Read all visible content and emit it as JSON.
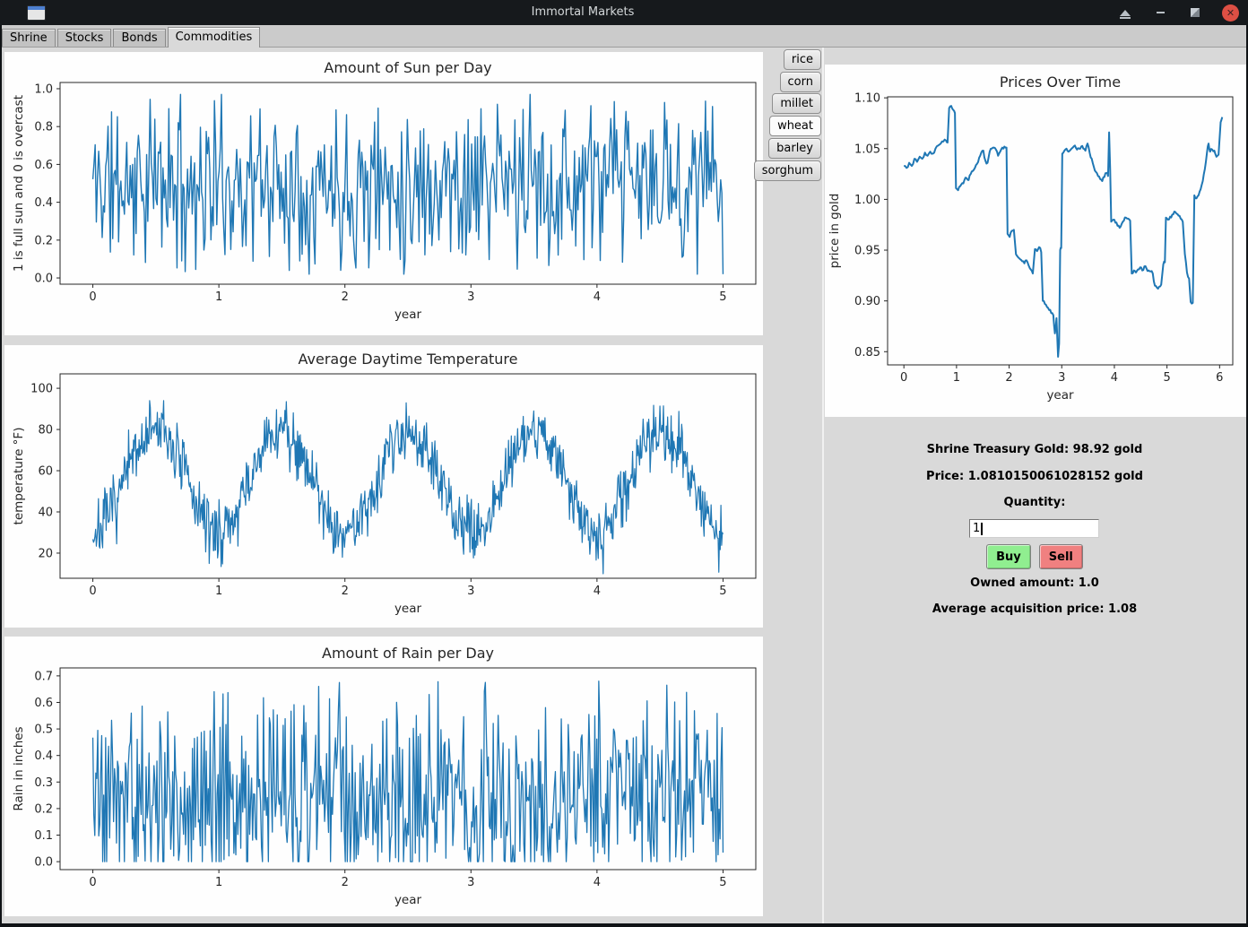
{
  "window": {
    "title": "Immortal Markets"
  },
  "titlebar": {
    "controls": [
      "shade",
      "minimize",
      "maximize",
      "close"
    ]
  },
  "tabs": [
    {
      "label": "Shrine",
      "active": false
    },
    {
      "label": "Stocks",
      "active": false
    },
    {
      "label": "Bonds",
      "active": false
    },
    {
      "label": "Commodities",
      "active": true
    }
  ],
  "commodities": [
    {
      "label": "rice",
      "active": false
    },
    {
      "label": "corn",
      "active": false
    },
    {
      "label": "millet",
      "active": false
    },
    {
      "label": "wheat",
      "active": true
    },
    {
      "label": "barley",
      "active": false
    },
    {
      "label": "sorghum",
      "active": false
    }
  ],
  "trade": {
    "treasury": "Shrine Treasury Gold: 98.92 gold",
    "price": "Price: 1.0810150061028152 gold",
    "quantity_label": "Quantity:",
    "quantity_value": "1",
    "buy": "Buy",
    "sell": "Sell",
    "owned": "Owned amount: 1.0",
    "avg": "Average acquisition price: 1.08",
    "buy_color": "#90ee90",
    "sell_color": "#f08080"
  },
  "colors": {
    "line": "#1f77b4",
    "titlebar": "#16191c",
    "content_bg": "#d9d9d9",
    "figure_bg": "#fefefe",
    "close_button": "#dd4f44"
  },
  "chart_data": [
    {
      "id": "sun",
      "type": "line",
      "title": "Amount of Sun per Day",
      "xlabel": "year",
      "ylabel": "1 is full sun and 0 is overcast",
      "xlim": [
        -0.26,
        5.26
      ],
      "ylim": [
        -0.033,
        1.033
      ],
      "xticks": [
        0,
        1,
        2,
        3,
        4,
        5
      ],
      "yticks": [
        0.0,
        0.2,
        0.4,
        0.6,
        0.8,
        1.0
      ],
      "ytick_decimals": 1,
      "grid": false,
      "legend": "none",
      "color": "#1f77b4",
      "line_width": 1.4,
      "series": {
        "kind": "procedural",
        "model": "triangular-noise",
        "n": 540,
        "x_start": 0,
        "x_end": 5,
        "base": 0.5,
        "spread": 0.525,
        "clamp": [
          0.02,
          0.97
        ],
        "seed": 11,
        "note": "daily sun fraction, uniform-like noise spanning 0..1"
      }
    },
    {
      "id": "temp",
      "type": "line",
      "title": "Average Daytime Temperature",
      "xlabel": "year",
      "ylabel": "temperature °F)",
      "xlim": [
        -0.26,
        5.26
      ],
      "ylim": [
        7.8,
        107
      ],
      "xticks": [
        0,
        1,
        2,
        3,
        4,
        5
      ],
      "yticks": [
        20,
        40,
        60,
        80,
        100
      ],
      "ytick_decimals": 0,
      "grid": false,
      "legend": "none",
      "color": "#1f77b4",
      "line_width": 1.2,
      "series": {
        "kind": "procedural",
        "model": "seasonal-noise",
        "n": 900,
        "x_start": 0,
        "x_end": 5,
        "mean": 55,
        "amplitude": -25,
        "period": 1,
        "noise_sd": 7.5,
        "clamp": [
          10,
          102
        ],
        "seed": 7,
        "note": "seasonal sine: winter ~30F at integer years, summer ~80F mid-year, peaks to ~102F"
      }
    },
    {
      "id": "rain",
      "type": "line",
      "title": "Amount of Rain per Day",
      "xlabel": "year",
      "ylabel": "Rain in inches",
      "xlim": [
        -0.26,
        5.26
      ],
      "ylim": [
        -0.03,
        0.73
      ],
      "xticks": [
        0,
        1,
        2,
        3,
        4,
        5
      ],
      "yticks": [
        0.0,
        0.1,
        0.2,
        0.3,
        0.4,
        0.5,
        0.6,
        0.7
      ],
      "ytick_decimals": 1,
      "grid": false,
      "legend": "none",
      "color": "#1f77b4",
      "line_width": 1.3,
      "series": {
        "kind": "procedural",
        "model": "rain-noise",
        "n": 640,
        "x_start": 0,
        "x_end": 5,
        "offset": -0.22,
        "scale": 0.47,
        "clamp": [
          0,
          0.72
        ],
        "seed": 5,
        "note": "daily rainfall 0..~0.7 in, frequently 0"
      }
    },
    {
      "id": "price",
      "type": "line",
      "title": "Prices Over Time",
      "xlabel": "year",
      "ylabel": "price in gold",
      "xlim": [
        -0.31,
        6.25
      ],
      "ylim": [
        0.837,
        1.101
      ],
      "xticks": [
        0,
        1,
        2,
        3,
        4,
        5,
        6
      ],
      "yticks": [
        0.85,
        0.9,
        0.95,
        1.0,
        1.05,
        1.1
      ],
      "ytick_decimals": 2,
      "grid": false,
      "legend": "none",
      "color": "#1f77b4",
      "line_width": 2,
      "series": {
        "kind": "keypoints",
        "subdiv": 2,
        "jitter": 0.0018,
        "seed": 3,
        "points": [
          [
            0,
            1.033
          ],
          [
            0.05,
            1.031
          ],
          [
            0.1,
            1.036
          ],
          [
            0.15,
            1.033
          ],
          [
            0.2,
            1.04
          ],
          [
            0.25,
            1.037
          ],
          [
            0.3,
            1.042
          ],
          [
            0.35,
            1.04
          ],
          [
            0.4,
            1.046
          ],
          [
            0.45,
            1.043
          ],
          [
            0.5,
            1.047
          ],
          [
            0.55,
            1.045
          ],
          [
            0.6,
            1.05
          ],
          [
            0.65,
            1.053
          ],
          [
            0.7,
            1.055
          ],
          [
            0.75,
            1.057
          ],
          [
            0.8,
            1.058
          ],
          [
            0.83,
            1.056
          ],
          [
            0.86,
            1.09
          ],
          [
            0.9,
            1.092
          ],
          [
            0.94,
            1.088
          ],
          [
            0.97,
            1.085
          ],
          [
            0.99,
            1.011
          ],
          [
            1.03,
            1.009
          ],
          [
            1.07,
            1.013
          ],
          [
            1.11,
            1.016
          ],
          [
            1.15,
            1.019
          ],
          [
            1.19,
            1.021
          ],
          [
            1.23,
            1.019
          ],
          [
            1.27,
            1.025
          ],
          [
            1.31,
            1.028
          ],
          [
            1.35,
            1.031
          ],
          [
            1.39,
            1.035
          ],
          [
            1.43,
            1.041
          ],
          [
            1.47,
            1.046
          ],
          [
            1.51,
            1.048
          ],
          [
            1.55,
            1.038
          ],
          [
            1.59,
            1.036
          ],
          [
            1.63,
            1.047
          ],
          [
            1.67,
            1.05
          ],
          [
            1.71,
            1.051
          ],
          [
            1.75,
            1.049
          ],
          [
            1.79,
            1.043
          ],
          [
            1.83,
            1.047
          ],
          [
            1.87,
            1.051
          ],
          [
            1.91,
            1.052
          ],
          [
            1.95,
            1.051
          ],
          [
            1.97,
            0.966
          ],
          [
            2.01,
            0.963
          ],
          [
            2.05,
            0.969
          ],
          [
            2.09,
            0.97
          ],
          [
            2.13,
            0.946
          ],
          [
            2.17,
            0.943
          ],
          [
            2.21,
            0.941
          ],
          [
            2.25,
            0.939
          ],
          [
            2.29,
            0.937
          ],
          [
            2.33,
            0.94
          ],
          [
            2.37,
            0.935
          ],
          [
            2.41,
            0.931
          ],
          [
            2.45,
            0.927
          ],
          [
            2.49,
            0.951
          ],
          [
            2.53,
            0.949
          ],
          [
            2.57,
            0.953
          ],
          [
            2.61,
            0.948
          ],
          [
            2.64,
            0.9
          ],
          [
            2.68,
            0.897
          ],
          [
            2.72,
            0.894
          ],
          [
            2.76,
            0.891
          ],
          [
            2.8,
            0.888
          ],
          [
            2.84,
            0.886
          ],
          [
            2.87,
            0.868
          ],
          [
            2.9,
            0.883
          ],
          [
            2.93,
            0.845
          ],
          [
            2.95,
            0.858
          ],
          [
            2.97,
            0.95
          ],
          [
            2.99,
            0.952
          ],
          [
            3.01,
            1.045
          ],
          [
            3.05,
            1.048
          ],
          [
            3.09,
            1.05
          ],
          [
            3.13,
            1.047
          ],
          [
            3.17,
            1.049
          ],
          [
            3.21,
            1.051
          ],
          [
            3.25,
            1.053
          ],
          [
            3.29,
            1.049
          ],
          [
            3.33,
            1.05
          ],
          [
            3.37,
            1.052
          ],
          [
            3.41,
            1.05
          ],
          [
            3.45,
            1.048
          ],
          [
            3.49,
            1.055
          ],
          [
            3.53,
            1.046
          ],
          [
            3.57,
            1.04
          ],
          [
            3.61,
            1.032
          ],
          [
            3.65,
            1.027
          ],
          [
            3.69,
            1.023
          ],
          [
            3.73,
            1.02
          ],
          [
            3.77,
            1.018
          ],
          [
            3.81,
            1.022
          ],
          [
            3.85,
            1.026
          ],
          [
            3.88,
            1.023
          ],
          [
            3.9,
            1.066
          ],
          [
            3.92,
            1.03
          ],
          [
            3.94,
            0.978
          ],
          [
            3.98,
            0.98
          ],
          [
            4.02,
            0.977
          ],
          [
            4.06,
            0.974
          ],
          [
            4.1,
            0.972
          ],
          [
            4.14,
            0.976
          ],
          [
            4.18,
            0.979
          ],
          [
            4.22,
            0.982
          ],
          [
            4.26,
            0.981
          ],
          [
            4.3,
            0.979
          ],
          [
            4.33,
            0.927
          ],
          [
            4.37,
            0.93
          ],
          [
            4.41,
            0.928
          ],
          [
            4.45,
            0.931
          ],
          [
            4.49,
            0.933
          ],
          [
            4.53,
            0.93
          ],
          [
            4.57,
            0.934
          ],
          [
            4.61,
            0.932
          ],
          [
            4.65,
            0.93
          ],
          [
            4.69,
            0.929
          ],
          [
            4.73,
            0.927
          ],
          [
            4.77,
            0.915
          ],
          [
            4.81,
            0.913
          ],
          [
            4.85,
            0.914
          ],
          [
            4.89,
            0.916
          ],
          [
            4.93,
            0.936
          ],
          [
            4.96,
            0.938
          ],
          [
            4.98,
            0.982
          ],
          [
            5.02,
            0.98
          ],
          [
            5.06,
            0.983
          ],
          [
            5.1,
            0.985
          ],
          [
            5.14,
            0.988
          ],
          [
            5.18,
            0.986
          ],
          [
            5.22,
            0.984
          ],
          [
            5.26,
            0.981
          ],
          [
            5.3,
            0.978
          ],
          [
            5.34,
            0.946
          ],
          [
            5.38,
            0.928
          ],
          [
            5.42,
            0.922
          ],
          [
            5.45,
            0.899
          ],
          [
            5.49,
            0.898
          ],
          [
            5.52,
            1.004
          ],
          [
            5.56,
            1.001
          ],
          [
            5.6,
            1.004
          ],
          [
            5.64,
            1.01
          ],
          [
            5.68,
            1.018
          ],
          [
            5.72,
            1.03
          ],
          [
            5.76,
            1.046
          ],
          [
            5.79,
            1.055
          ],
          [
            5.82,
            1.047
          ],
          [
            5.86,
            1.049
          ],
          [
            5.9,
            1.048
          ],
          [
            5.94,
            1.042
          ],
          [
            5.98,
            1.044
          ],
          [
            6.02,
            1.076
          ],
          [
            6.05,
            1.081
          ]
        ]
      }
    }
  ]
}
